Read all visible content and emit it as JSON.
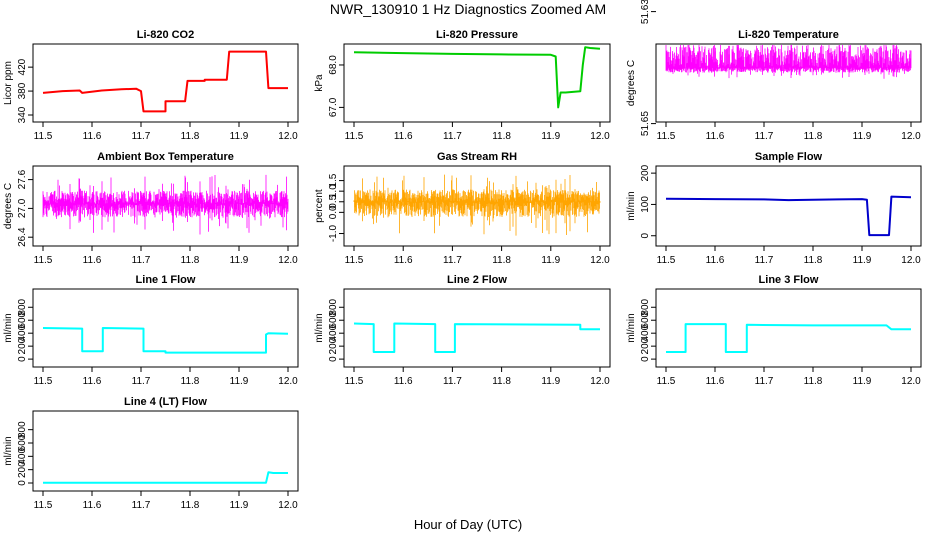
{
  "page": {
    "title": "NWR_130910  1 Hz Diagnostics Zoomed AM",
    "x_axis_title": "Hour of Day (UTC)"
  },
  "chart_data": [
    {
      "type": "line",
      "title": "Li-820 CO2",
      "ylabel": "Licor ppm",
      "color": "#ff0000",
      "xlim": [
        11.5,
        12.0
      ],
      "ylim": [
        335,
        452
      ],
      "xticks": [
        "11.5",
        "11.6",
        "11.7",
        "11.8",
        "11.9",
        "12.0"
      ],
      "yticks": [
        "340",
        "380",
        "420"
      ],
      "series": [
        {
          "x": [
            11.5,
            11.54,
            11.575,
            11.58,
            11.62,
            11.66,
            11.69,
            11.7,
            11.705,
            11.75,
            11.75,
            11.79,
            11.795,
            11.83,
            11.83,
            11.875,
            11.88,
            11.955,
            11.96,
            12.0
          ],
          "y": [
            377,
            380,
            381,
            377,
            381,
            383,
            384,
            380,
            346,
            346,
            363,
            363,
            397,
            397,
            399,
            399,
            446,
            446,
            385,
            385
          ]
        }
      ]
    },
    {
      "type": "line",
      "title": "Li-820 Pressure",
      "ylabel": "kPa",
      "color": "#00cc00",
      "xlim": [
        11.5,
        12.0
      ],
      "ylim": [
        66.75,
        68.4
      ],
      "xticks": [
        "11.5",
        "11.6",
        "11.7",
        "11.8",
        "11.9",
        "12.0"
      ],
      "yticks": [
        "67.0",
        "68.0"
      ],
      "series": [
        {
          "x": [
            11.5,
            11.6,
            11.7,
            11.8,
            11.9,
            11.91,
            11.915,
            11.92,
            11.93,
            11.96,
            11.965,
            11.97,
            11.98,
            12.0
          ],
          "y": [
            68.3,
            68.28,
            68.26,
            68.25,
            68.24,
            68.2,
            67.0,
            67.35,
            67.35,
            67.38,
            68.0,
            68.42,
            68.4,
            68.38
          ]
        }
      ]
    },
    {
      "type": "line",
      "title": "Li-820 Temperature",
      "ylabel": "degrees C",
      "color": "#ff00ff",
      "xlim": [
        11.5,
        12.0
      ],
      "ylim": [
        51.649,
        51.6365
      ],
      "xticks": [
        "11.5",
        "11.6",
        "11.7",
        "11.8",
        "11.9",
        "12.0"
      ],
      "yticks": [
        "51.65",
        "51.63"
      ],
      "yticks_values": [
        51.65,
        51.63
      ],
      "series": [
        {
          "x": [
            11.5,
            12.0
          ],
          "y": [
            51.64,
            51.64
          ],
          "noise_band": [
            51.631,
            51.642
          ]
        }
      ]
    },
    {
      "type": "line",
      "title": "Ambient Box Temperature",
      "ylabel": "degrees C",
      "color": "#ff00ff",
      "xlim": [
        11.5,
        12.0
      ],
      "ylim": [
        26.3,
        27.8
      ],
      "xticks": [
        "11.5",
        "11.6",
        "11.7",
        "11.8",
        "11.9",
        "12.0"
      ],
      "yticks": [
        "26.4",
        "27.0",
        "27.6"
      ],
      "series": [
        {
          "x": [
            11.5,
            12.0
          ],
          "y": [
            27.1,
            27.1
          ],
          "noise_band": [
            26.45,
            27.7
          ]
        }
      ]
    },
    {
      "type": "line",
      "title": "Gas Stream RH",
      "ylabel": "percent",
      "color": "#ffa500",
      "xlim": [
        11.5,
        12.0
      ],
      "ylim": [
        -1.4,
        2.0
      ],
      "xticks": [
        "11.5",
        "11.6",
        "11.7",
        "11.8",
        "11.9",
        "12.0"
      ],
      "yticks": [
        "-1.0",
        "0.0",
        "0.5",
        "1.0",
        "1.5"
      ],
      "series": [
        {
          "x": [
            11.5,
            12.0
          ],
          "y": [
            0.5,
            0.5
          ],
          "noise_band": [
            -1.1,
            1.8
          ]
        }
      ]
    },
    {
      "type": "line",
      "title": "Sample Flow",
      "ylabel": "ml/min",
      "color": "#0000cc",
      "xlim": [
        11.5,
        12.0
      ],
      "ylim": [
        -20,
        210
      ],
      "xticks": [
        "11.5",
        "11.6",
        "11.7",
        "11.8",
        "11.9",
        "12.0"
      ],
      "yticks": [
        "0",
        "100",
        "200"
      ],
      "series": [
        {
          "x": [
            11.5,
            11.6,
            11.7,
            11.75,
            11.8,
            11.85,
            11.9,
            11.91,
            11.915,
            11.955,
            11.96,
            12.0
          ],
          "y": [
            118,
            117,
            116,
            114,
            115,
            116,
            117,
            115,
            2,
            2,
            125,
            123
          ]
        }
      ]
    },
    {
      "type": "line",
      "title": "Line 1 Flow",
      "ylabel": "ml/min",
      "color": "#00ffff",
      "xlim": [
        11.5,
        12.0
      ],
      "ylim": [
        -60,
        1020
      ],
      "xticks": [
        "11.5",
        "11.6",
        "11.7",
        "11.8",
        "11.9",
        "12.0"
      ],
      "yticks": [
        "0",
        "200",
        "400",
        "600",
        "800"
      ],
      "series": [
        {
          "x": [
            11.5,
            11.58,
            11.58,
            11.622,
            11.622,
            11.705,
            11.705,
            11.75,
            11.75,
            11.955,
            11.955,
            11.96,
            12.0
          ],
          "y": [
            480,
            470,
            120,
            120,
            480,
            470,
            120,
            120,
            100,
            100,
            380,
            400,
            390
          ]
        }
      ]
    },
    {
      "type": "line",
      "title": "Line 2 Flow",
      "ylabel": "ml/min",
      "color": "#00ffff",
      "xlim": [
        11.5,
        12.0
      ],
      "ylim": [
        -60,
        1020
      ],
      "xticks": [
        "11.5",
        "11.6",
        "11.7",
        "11.8",
        "11.9",
        "12.0"
      ],
      "yticks": [
        "0",
        "200",
        "400",
        "600",
        "800"
      ],
      "series": [
        {
          "x": [
            11.5,
            11.54,
            11.54,
            11.582,
            11.582,
            11.665,
            11.665,
            11.705,
            11.705,
            11.96,
            11.96,
            12.0
          ],
          "y": [
            550,
            540,
            110,
            110,
            550,
            540,
            110,
            110,
            540,
            530,
            460,
            460
          ]
        }
      ]
    },
    {
      "type": "line",
      "title": "Line 3 Flow",
      "ylabel": "ml/min",
      "color": "#00ffff",
      "xlim": [
        11.5,
        12.0
      ],
      "ylim": [
        -60,
        1020
      ],
      "xticks": [
        "11.5",
        "11.6",
        "11.7",
        "11.8",
        "11.9",
        "12.0"
      ],
      "yticks": [
        "0",
        "200",
        "400",
        "600",
        "800"
      ],
      "series": [
        {
          "x": [
            11.5,
            11.54,
            11.54,
            11.622,
            11.622,
            11.665,
            11.665,
            11.8,
            11.95,
            11.96,
            12.0
          ],
          "y": [
            110,
            110,
            540,
            540,
            110,
            110,
            530,
            520,
            520,
            460,
            460
          ]
        }
      ]
    },
    {
      "type": "line",
      "title": "Line 4 (LT) Flow",
      "ylabel": "ml/min",
      "color": "#00ffff",
      "xlim": [
        11.5,
        12.0
      ],
      "ylim": [
        -60,
        1020
      ],
      "xticks": [
        "11.5",
        "11.6",
        "11.7",
        "11.8",
        "11.9",
        "12.0"
      ],
      "yticks": [
        "0",
        "200",
        "400",
        "600",
        "800"
      ],
      "series": [
        {
          "x": [
            11.5,
            11.955,
            11.96,
            11.97,
            12.0
          ],
          "y": [
            5,
            5,
            160,
            150,
            150
          ]
        }
      ]
    }
  ]
}
